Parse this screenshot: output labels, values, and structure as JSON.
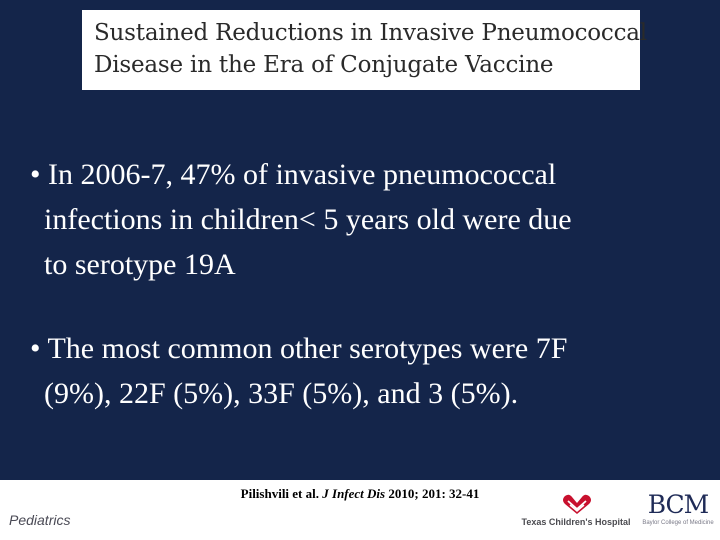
{
  "title": {
    "line1": "Sustained Reductions in Invasive Pneumococcal",
    "line2": "Disease in the Era of Conjugate Vaccine"
  },
  "bullets": [
    {
      "marker": "•",
      "lines": [
        "In 2006-7, 47% of invasive pneumococcal",
        "infections in children< 5 years old were due",
        "to serotype 19A"
      ]
    },
    {
      "marker": "•",
      "lines": [
        "The most common other serotypes were 7F",
        "(9%), 22F (5%), 33F (5%), and 3 (5%)."
      ]
    }
  ],
  "citation": {
    "author": "Pilishvili et al.",
    "journal": "J Infect Dis",
    "rest": "2010; 201: 32-41"
  },
  "footer": {
    "label": "Pediatrics",
    "hospital_logo": "Texas Children's Hospital",
    "bcm_logo": "BCM",
    "bcm_sub": "Baylor College of Medicine"
  },
  "colors": {
    "panel_bg": "#14254a",
    "title_bg": "#ffffff",
    "hospital_red": "#c8102e",
    "bcm_navy": "#1f2b57"
  },
  "icons": {
    "hospital_logo": "tch-hands-heart-icon"
  }
}
